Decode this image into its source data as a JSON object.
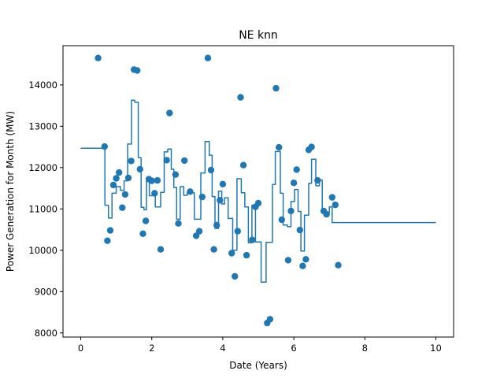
{
  "chart_data": {
    "type": "scatter",
    "title": "NE knn",
    "xlabel": "Date (Years)",
    "ylabel": "Power Generation for Month (MW)",
    "xlim": [
      -0.5,
      10.5
    ],
    "ylim": [
      7900,
      14950
    ],
    "xticks": [
      0,
      2,
      4,
      6,
      8,
      10
    ],
    "yticks": [
      8000,
      9000,
      10000,
      11000,
      12000,
      13000,
      14000
    ],
    "grid": false,
    "legend": "none",
    "series_color": "#1f77b4",
    "series": [
      {
        "kind": "scatter",
        "points": [
          [
            0.49,
            14650
          ],
          [
            0.67,
            12510
          ],
          [
            0.75,
            10230
          ],
          [
            0.83,
            10480
          ],
          [
            0.92,
            11580
          ],
          [
            1.0,
            11740
          ],
          [
            1.08,
            11880
          ],
          [
            1.17,
            11030
          ],
          [
            1.25,
            11350
          ],
          [
            1.34,
            11750
          ],
          [
            1.42,
            12160
          ],
          [
            1.5,
            14370
          ],
          [
            1.59,
            14350
          ],
          [
            1.67,
            11960
          ],
          [
            1.75,
            10400
          ],
          [
            1.83,
            10710
          ],
          [
            1.92,
            11720
          ],
          [
            2.0,
            11680
          ],
          [
            2.08,
            11380
          ],
          [
            2.16,
            11690
          ],
          [
            2.25,
            10020
          ],
          [
            2.42,
            12180
          ],
          [
            2.5,
            13320
          ],
          [
            2.67,
            11830
          ],
          [
            2.75,
            10650
          ],
          [
            2.92,
            12170
          ],
          [
            3.08,
            11420
          ],
          [
            3.25,
            10350
          ],
          [
            3.34,
            10460
          ],
          [
            3.42,
            11290
          ],
          [
            3.58,
            14650
          ],
          [
            3.67,
            11940
          ],
          [
            3.75,
            10020
          ],
          [
            3.83,
            10610
          ],
          [
            3.92,
            11210
          ],
          [
            4.0,
            11600
          ],
          [
            4.25,
            9930
          ],
          [
            4.34,
            9370
          ],
          [
            4.42,
            10460
          ],
          [
            4.5,
            13700
          ],
          [
            4.58,
            12060
          ],
          [
            4.67,
            9880
          ],
          [
            4.83,
            10250
          ],
          [
            4.92,
            11050
          ],
          [
            5.0,
            11140
          ],
          [
            5.25,
            8240
          ],
          [
            5.33,
            8330
          ],
          [
            5.5,
            13920
          ],
          [
            5.58,
            12490
          ],
          [
            5.66,
            10740
          ],
          [
            5.84,
            9760
          ],
          [
            5.92,
            10950
          ],
          [
            6.0,
            11630
          ],
          [
            6.08,
            11950
          ],
          [
            6.17,
            10490
          ],
          [
            6.25,
            9620
          ],
          [
            6.34,
            9780
          ],
          [
            6.42,
            12430
          ],
          [
            6.5,
            12500
          ],
          [
            6.67,
            11690
          ],
          [
            6.84,
            10950
          ],
          [
            6.92,
            10870
          ],
          [
            7.08,
            11280
          ],
          [
            7.17,
            11100
          ],
          [
            7.25,
            9640
          ]
        ]
      },
      {
        "kind": "step-line",
        "points": [
          [
            0.0,
            12470
          ],
          [
            0.62,
            12470
          ],
          [
            0.62,
            12510
          ],
          [
            0.68,
            12510
          ],
          [
            0.68,
            11090
          ],
          [
            0.78,
            11090
          ],
          [
            0.78,
            10780
          ],
          [
            0.88,
            10780
          ],
          [
            0.88,
            11380
          ],
          [
            1.0,
            11380
          ],
          [
            1.0,
            11540
          ],
          [
            1.12,
            11540
          ],
          [
            1.12,
            11450
          ],
          [
            1.22,
            11450
          ],
          [
            1.22,
            11680
          ],
          [
            1.32,
            11680
          ],
          [
            1.32,
            12570
          ],
          [
            1.43,
            12570
          ],
          [
            1.43,
            13630
          ],
          [
            1.52,
            13630
          ],
          [
            1.52,
            13580
          ],
          [
            1.62,
            13580
          ],
          [
            1.62,
            12240
          ],
          [
            1.7,
            12240
          ],
          [
            1.7,
            11040
          ],
          [
            1.78,
            11040
          ],
          [
            1.78,
            10980
          ],
          [
            1.85,
            10980
          ],
          [
            1.85,
            11680
          ],
          [
            1.93,
            11680
          ],
          [
            1.93,
            11320
          ],
          [
            2.1,
            11320
          ],
          [
            2.1,
            11050
          ],
          [
            2.25,
            11050
          ],
          [
            2.25,
            11400
          ],
          [
            2.35,
            11400
          ],
          [
            2.35,
            12380
          ],
          [
            2.45,
            12380
          ],
          [
            2.45,
            12450
          ],
          [
            2.55,
            12450
          ],
          [
            2.55,
            11960
          ],
          [
            2.62,
            11960
          ],
          [
            2.62,
            11520
          ],
          [
            2.7,
            11520
          ],
          [
            2.7,
            10750
          ],
          [
            2.8,
            10750
          ],
          [
            2.8,
            11540
          ],
          [
            2.9,
            11540
          ],
          [
            2.9,
            11330
          ],
          [
            3.0,
            11330
          ],
          [
            3.0,
            11390
          ],
          [
            3.2,
            11390
          ],
          [
            3.2,
            10750
          ],
          [
            3.38,
            10750
          ],
          [
            3.38,
            11870
          ],
          [
            3.5,
            11870
          ],
          [
            3.5,
            12630
          ],
          [
            3.62,
            12630
          ],
          [
            3.62,
            12300
          ],
          [
            3.7,
            12300
          ],
          [
            3.7,
            11300
          ],
          [
            3.78,
            11300
          ],
          [
            3.78,
            10530
          ],
          [
            3.88,
            10530
          ],
          [
            3.88,
            11430
          ],
          [
            3.97,
            11430
          ],
          [
            3.97,
            11120
          ],
          [
            4.05,
            11120
          ],
          [
            4.05,
            11270
          ],
          [
            4.15,
            11270
          ],
          [
            4.15,
            10770
          ],
          [
            4.28,
            10770
          ],
          [
            4.28,
            10000
          ],
          [
            4.4,
            10000
          ],
          [
            4.4,
            11730
          ],
          [
            4.52,
            11730
          ],
          [
            4.52,
            11390
          ],
          [
            4.62,
            11390
          ],
          [
            4.62,
            11050
          ],
          [
            4.72,
            11050
          ],
          [
            4.72,
            10180
          ],
          [
            4.82,
            10180
          ],
          [
            4.82,
            11090
          ],
          [
            4.92,
            11090
          ],
          [
            4.92,
            10200
          ],
          [
            5.08,
            10200
          ],
          [
            5.08,
            9230
          ],
          [
            5.22,
            9230
          ],
          [
            5.22,
            10190
          ],
          [
            5.4,
            10190
          ],
          [
            5.4,
            11590
          ],
          [
            5.48,
            11590
          ],
          [
            5.48,
            12390
          ],
          [
            5.62,
            12390
          ],
          [
            5.62,
            11380
          ],
          [
            5.7,
            11380
          ],
          [
            5.7,
            10610
          ],
          [
            5.82,
            10610
          ],
          [
            5.82,
            10570
          ],
          [
            5.92,
            10570
          ],
          [
            5.92,
            11180
          ],
          [
            6.02,
            11180
          ],
          [
            6.02,
            11470
          ],
          [
            6.12,
            11470
          ],
          [
            6.12,
            10940
          ],
          [
            6.2,
            10940
          ],
          [
            6.2,
            9980
          ],
          [
            6.3,
            9980
          ],
          [
            6.3,
            10850
          ],
          [
            6.42,
            10850
          ],
          [
            6.42,
            11620
          ],
          [
            6.5,
            11620
          ],
          [
            6.5,
            12200
          ],
          [
            6.62,
            12200
          ],
          [
            6.62,
            11560
          ],
          [
            6.72,
            11560
          ],
          [
            6.72,
            11700
          ],
          [
            6.8,
            11700
          ],
          [
            6.8,
            10980
          ],
          [
            6.88,
            10980
          ],
          [
            6.88,
            10910
          ],
          [
            7.0,
            10910
          ],
          [
            7.0,
            11050
          ],
          [
            7.08,
            11050
          ],
          [
            7.08,
            10670
          ],
          [
            10.0,
            10670
          ]
        ]
      }
    ]
  }
}
